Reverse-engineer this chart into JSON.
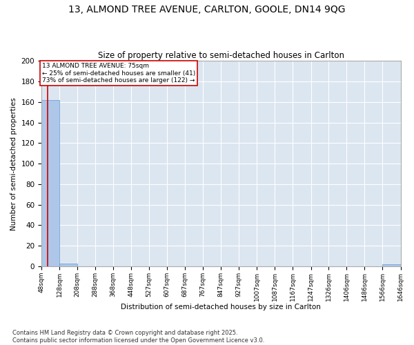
{
  "title": "13, ALMOND TREE AVENUE, CARLTON, GOOLE, DN14 9QG",
  "subtitle": "Size of property relative to semi-detached houses in Carlton",
  "xlabel": "Distribution of semi-detached houses by size in Carlton",
  "ylabel": "Number of semi-detached properties",
  "bin_edges": [
    48,
    128,
    208,
    288,
    368,
    448,
    527,
    607,
    687,
    767,
    847,
    927,
    1007,
    1087,
    1167,
    1247,
    1326,
    1406,
    1486,
    1566,
    1646
  ],
  "bar_heights": [
    162,
    3,
    0,
    0,
    0,
    0,
    0,
    0,
    0,
    0,
    0,
    0,
    0,
    0,
    0,
    0,
    0,
    0,
    0,
    2
  ],
  "bar_color": "#aec6e8",
  "bar_edge_color": "#5b9bd5",
  "property_size": 75,
  "property_line_color": "#cc0000",
  "annotation_text": "13 ALMOND TREE AVENUE: 75sqm\n← 25% of semi-detached houses are smaller (41)\n73% of semi-detached houses are larger (122) →",
  "annotation_box_color": "#ffffff",
  "annotation_box_edge_color": "#cc0000",
  "ylim": [
    0,
    200
  ],
  "yticks": [
    0,
    20,
    40,
    60,
    80,
    100,
    120,
    140,
    160,
    180,
    200
  ],
  "background_color": "#dce6f1",
  "fig_background_color": "#ffffff",
  "grid_color": "#ffffff",
  "footer_text": "Contains HM Land Registry data © Crown copyright and database right 2025.\nContains public sector information licensed under the Open Government Licence v3.0."
}
